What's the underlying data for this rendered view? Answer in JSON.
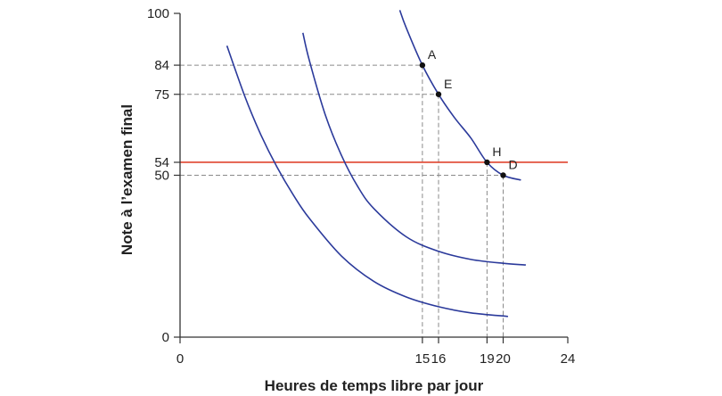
{
  "chart_data": {
    "type": "line",
    "title": "",
    "xlabel": "Heures de temps libre par jour",
    "ylabel": "Note à l’examen final",
    "xlim": [
      0,
      24
    ],
    "ylim": [
      0,
      100
    ],
    "x_ticks": [
      "0",
      "15",
      "16",
      "19",
      "20",
      "24"
    ],
    "y_ticks": [
      "0",
      "50",
      "54",
      "75",
      "84",
      "100"
    ],
    "grid": false,
    "colors": {
      "curves": "#2b3a9b",
      "horizontal_line": "#e0452f",
      "guides": "#8a8a8a",
      "axes": "#333333"
    },
    "series": [
      {
        "x": [
          2.9,
          4,
          5,
          6,
          7,
          8,
          10,
          12,
          14,
          16,
          18,
          20.3
        ],
        "y": [
          90,
          74.5,
          62.5,
          52.5,
          44,
          36.7,
          25,
          17.2,
          12.4,
          9.4,
          7.5,
          6.4
        ]
      },
      {
        "x": [
          7.6,
          8,
          9,
          10,
          11,
          12,
          14,
          16,
          18,
          20,
          21.4
        ],
        "y": [
          94,
          85.5,
          68.5,
          56,
          46.5,
          39.7,
          31,
          26.5,
          24,
          22.8,
          22.3
        ]
      },
      {
        "x": [
          13.6,
          14,
          15,
          16,
          17,
          18,
          19,
          20,
          21.1
        ],
        "y": [
          101,
          95.5,
          84,
          75,
          67.7,
          61.5,
          54,
          50,
          48.5
        ]
      }
    ],
    "horizontal_line": {
      "y": 54
    },
    "points": [
      {
        "label": "A",
        "x": 15,
        "y": 84
      },
      {
        "label": "E",
        "x": 16,
        "y": 75
      },
      {
        "label": "H",
        "x": 19,
        "y": 54
      },
      {
        "label": "D",
        "x": 20,
        "y": 50
      }
    ]
  }
}
